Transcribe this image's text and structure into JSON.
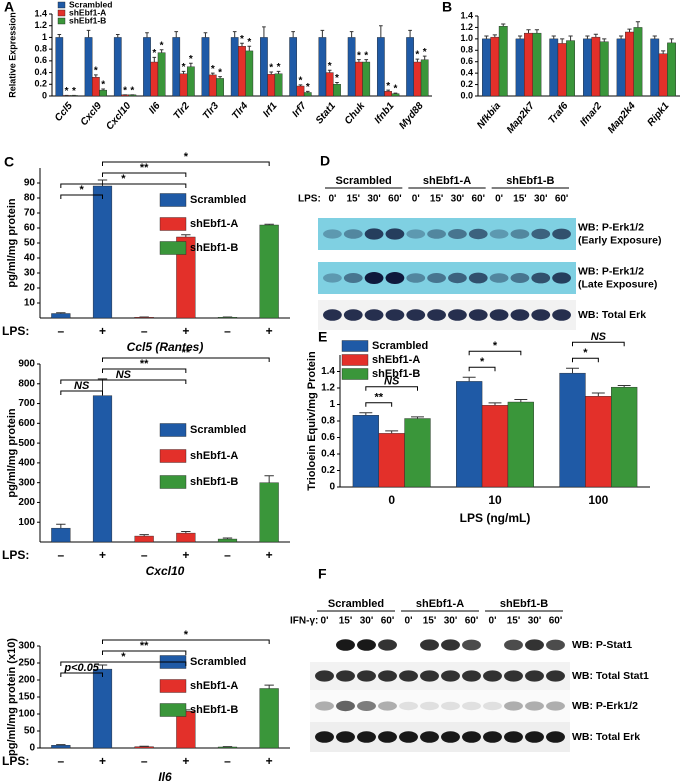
{
  "chart_data": [
    {
      "type": "bar",
      "label": "A",
      "ylabel": "Relative Expression",
      "categories": [
        "Ccl5",
        "Cxcl9",
        "Cxcl10",
        "Il6",
        "Tlr2",
        "Tlr3",
        "Tlr4",
        "Irf1",
        "Irf7",
        "Stat1",
        "Chuk",
        "Ifnb1",
        "Myd88"
      ],
      "ylim": [
        0,
        1.4
      ],
      "yticks": [
        0,
        0.2,
        0.4,
        0.6,
        0.8,
        1,
        1.2,
        1.4
      ],
      "legend": "top-left",
      "series": [
        {
          "name": "Scrambled",
          "color": "#1f5aa6",
          "values": [
            1,
            1,
            1,
            1,
            1,
            1,
            1,
            1,
            1,
            1,
            1,
            1,
            1
          ],
          "errors": [
            0.05,
            0.12,
            0.05,
            0.08,
            0.1,
            0.08,
            0.1,
            0.18,
            0.1,
            0.12,
            0.1,
            0.2,
            0.12
          ]
        },
        {
          "name": "shEbf1-A",
          "color": "#e3302a",
          "values": [
            0.01,
            0.32,
            0.02,
            0.58,
            0.38,
            0.36,
            0.85,
            0.37,
            0.17,
            0.4,
            0.58,
            0.08,
            0.58
          ],
          "errors": [
            0,
            0.04,
            0,
            0.08,
            0.04,
            0.03,
            0.05,
            0.04,
            0.02,
            0.04,
            0.04,
            0.02,
            0.05
          ],
          "significance": [
            "*",
            "*",
            "*",
            "*",
            "*",
            "*",
            "*",
            "*",
            "*",
            "*",
            "*",
            "*",
            "*"
          ]
        },
        {
          "name": "shEbf1-B",
          "color": "#3a963a",
          "values": [
            0.01,
            0.1,
            0.02,
            0.74,
            0.5,
            0.3,
            0.77,
            0.38,
            0.06,
            0.2,
            0.58,
            0.04,
            0.62
          ],
          "errors": [
            0,
            0.02,
            0,
            0.05,
            0.06,
            0.03,
            0.08,
            0.04,
            0.02,
            0.03,
            0.04,
            0.01,
            0.06
          ],
          "significance": [
            "*",
            "*",
            "*",
            "*",
            "*",
            "*",
            "*",
            "*",
            "*",
            "*",
            "*",
            "*",
            "*"
          ]
        }
      ]
    },
    {
      "type": "bar",
      "label": "B",
      "categories": [
        "Nfkbia",
        "Map2k7",
        "Traf6",
        "Ifnar2",
        "Map2k4",
        "Ripk1"
      ],
      "ylim": [
        0,
        1.4
      ],
      "yticks": [
        {
          "value": 0,
          "label": "0.0"
        },
        0.2,
        0.4,
        0.6,
        0.8,
        {
          "value": 1,
          "label": "1.0"
        },
        1.2,
        1.4
      ],
      "series": [
        {
          "color": "#1f5aa6",
          "values": [
            1,
            1,
            1,
            1,
            1,
            1
          ],
          "errors": [
            0.05,
            0.05,
            0.05,
            0.05,
            0.05,
            0.05
          ]
        },
        {
          "color": "#e3302a",
          "values": [
            1.03,
            1.1,
            0.92,
            1.03,
            1.12,
            0.74
          ],
          "errors": [
            0.04,
            0.06,
            0.08,
            0.05,
            0.05,
            0.05
          ]
        },
        {
          "color": "#3a963a",
          "values": [
            1.22,
            1.1,
            0.97,
            0.95,
            1.2,
            0.93
          ],
          "errors": [
            0.04,
            0.06,
            0.08,
            0.05,
            0.1,
            0.07
          ]
        }
      ]
    },
    {
      "type": "bar",
      "label": "C",
      "ylabel": "pg/ml/mg protein",
      "xlabel": "Ccl5 (Rantes)",
      "row_label": "LPS:",
      "categories": [
        "–",
        "+",
        "–",
        "+",
        "–",
        "+"
      ],
      "ylim": [
        0,
        100
      ],
      "yticks": [
        10,
        20,
        30,
        40,
        50,
        60,
        70,
        80,
        90
      ],
      "legend": "top-right",
      "series": [
        {
          "name": "Scrambled",
          "color": "#1f5aa6",
          "values": [
            3,
            88,
            null,
            null,
            null,
            null
          ],
          "errors": [
            0.5,
            4,
            null,
            null,
            null,
            null
          ]
        },
        {
          "name": "shEbf1-A",
          "color": "#e3302a",
          "values": [
            null,
            null,
            0.5,
            54,
            null,
            null
          ],
          "errors": [
            null,
            null,
            0.2,
            1.5,
            null,
            null
          ]
        },
        {
          "name": "shEbf1-B",
          "color": "#3a963a",
          "values": [
            null,
            null,
            null,
            null,
            0.5,
            62
          ],
          "errors": [
            null,
            null,
            null,
            null,
            0.2,
            0.5
          ]
        }
      ],
      "brackets": [
        "*",
        "**",
        "*",
        "*"
      ]
    },
    {
      "type": "bar",
      "ylabel": "pg/ml/mg protein",
      "xlabel": "Cxcl10",
      "row_label": "LPS:",
      "categories": [
        "–",
        "+",
        "–",
        "+",
        "–",
        "+"
      ],
      "ylim": [
        0,
        900
      ],
      "yticks": [
        100,
        200,
        300,
        400,
        500,
        600,
        700,
        800,
        900
      ],
      "legend": "top-right",
      "series": [
        {
          "name": "Scrambled",
          "color": "#1f5aa6",
          "values": [
            70,
            740,
            null,
            null,
            null,
            null
          ],
          "errors": [
            20,
            85,
            null,
            null,
            null,
            null
          ]
        },
        {
          "name": "shEbf1-A",
          "color": "#e3302a",
          "values": [
            null,
            null,
            30,
            45,
            null,
            null
          ],
          "errors": [
            null,
            null,
            7,
            8,
            null,
            null
          ]
        },
        {
          "name": "shEbf1-B",
          "color": "#3a963a",
          "values": [
            null,
            null,
            null,
            null,
            15,
            300
          ],
          "errors": [
            null,
            null,
            null,
            null,
            5,
            35
          ]
        }
      ],
      "brackets": [
        "**",
        "**",
        "NS",
        "NS"
      ]
    },
    {
      "type": "bar",
      "ylabel": "pg/ml/mg protein (x10)",
      "xlabel": "Il6",
      "row_label": "LPS:",
      "categories": [
        "–",
        "+",
        "–",
        "+",
        "–",
        "+"
      ],
      "ylim": [
        0,
        300
      ],
      "yticks": [
        0,
        50,
        100,
        150,
        200,
        250,
        300
      ],
      "legend": "top-right",
      "series": [
        {
          "name": "Scrambled",
          "color": "#1f5aa6",
          "values": [
            8,
            232,
            null,
            null,
            null,
            null
          ],
          "errors": [
            2,
            12,
            null,
            null,
            null,
            null
          ]
        },
        {
          "name": "shEbf1-A",
          "color": "#e3302a",
          "values": [
            null,
            null,
            4,
            108,
            null,
            null
          ],
          "errors": [
            null,
            null,
            1,
            4,
            null,
            null
          ]
        },
        {
          "name": "shEbf1-B",
          "color": "#3a963a",
          "values": [
            null,
            null,
            null,
            null,
            3,
            175
          ],
          "errors": [
            null,
            null,
            null,
            null,
            1,
            10
          ]
        }
      ],
      "brackets": [
        "*",
        "**",
        "*",
        "p<0.05"
      ]
    },
    {
      "type": "bar",
      "label": "E",
      "ylabel": "Trioloein Equiv/mg Protein",
      "xlabel": "LPS (ng/mL)",
      "categories": [
        "0",
        "10",
        "100"
      ],
      "ylim": [
        0,
        1.6
      ],
      "yticks": [
        0,
        0.2,
        0.4,
        0.6,
        0.8,
        1,
        1.2,
        1.4
      ],
      "legend": "top-left",
      "series": [
        {
          "name": "Scrambled",
          "color": "#1f5aa6",
          "values": [
            0.87,
            1.28,
            1.38
          ],
          "errors": [
            0.03,
            0.05,
            0.06
          ]
        },
        {
          "name": "shEbf1-A",
          "color": "#e3302a",
          "values": [
            0.65,
            0.99,
            1.1
          ],
          "errors": [
            0.03,
            0.03,
            0.04
          ]
        },
        {
          "name": "shEbf1-B",
          "color": "#3a963a",
          "values": [
            0.83,
            1.03,
            1.21
          ],
          "errors": [
            0.02,
            0.03,
            0.02
          ]
        }
      ],
      "brackets": [
        "NS",
        "**",
        "*",
        "*",
        "NS",
        "*"
      ]
    }
  ],
  "blots": [
    {
      "label": "D",
      "treatment": "LPS:",
      "groups": [
        "Scrambled",
        "shEbf1-A",
        "shEbf1-B"
      ],
      "times": [
        "0'",
        "15'",
        "30'",
        "60'"
      ],
      "rows": [
        [
          "WB: P-Erk1/2",
          "(Early Exposure)"
        ],
        [
          "WB: P-Erk1/2",
          "(Late Exposure)"
        ],
        [
          "WB: Total Erk"
        ]
      ]
    },
    {
      "label": "F",
      "treatment": "IFN-γ:",
      "groups": [
        "Scrambled",
        "shEbf1-A",
        "shEbf1-B"
      ],
      "times": [
        "0'",
        "15'",
        "30'",
        "60'"
      ],
      "rows": [
        [
          "WB: P-Stat1"
        ],
        [
          "WB: Total Stat1"
        ],
        [
          "WB: P-Erk1/2"
        ],
        [
          "WB: Total Erk"
        ]
      ]
    }
  ]
}
